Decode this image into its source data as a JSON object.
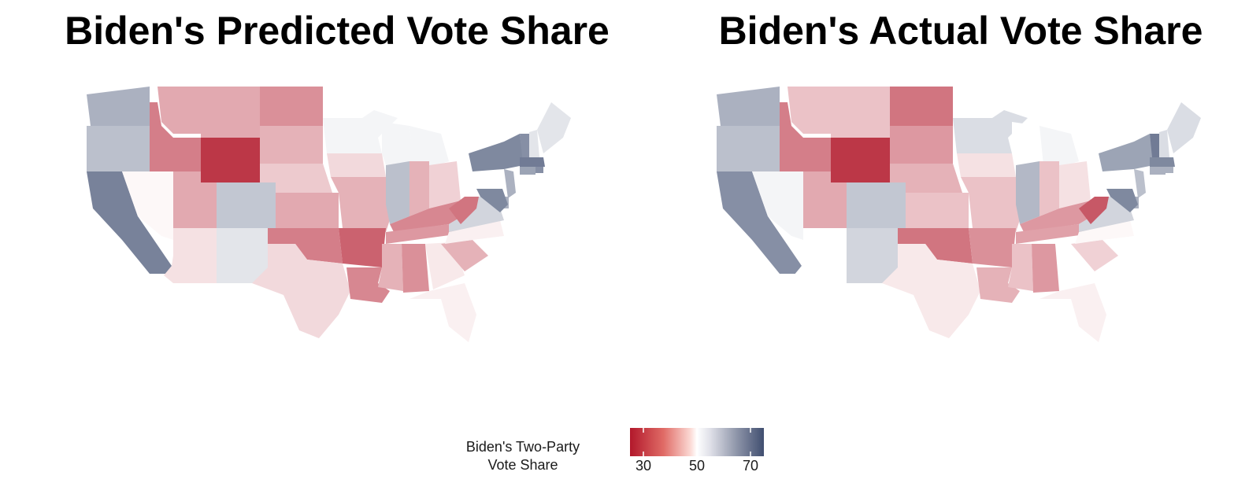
{
  "titles": {
    "left": "Biden's Predicted Vote Share",
    "right": "Biden's Actual Vote Share"
  },
  "legend": {
    "title": "Biden's Two-Party\nVote Share",
    "ticks": [
      {
        "value": 30,
        "label": "30"
      },
      {
        "value": 50,
        "label": "50"
      },
      {
        "value": 70,
        "label": "70"
      }
    ],
    "range": [
      25,
      75
    ],
    "colors": {
      "low": "#b2182b",
      "mid": "#ffffff",
      "high": "#404e70"
    }
  },
  "map_data": {
    "type": "choropleth",
    "variable": "Biden's two-party vote share (%)",
    "panels": [
      {
        "id": "predicted",
        "title_key": "left",
        "values": {
          "WA": 60,
          "OR": 58,
          "CA": 67,
          "NV": 49,
          "ID": 34,
          "MT": 39,
          "WY": 27,
          "UT": 39,
          "AZ": 46,
          "CO": 57,
          "NM": 53,
          "ND": 36,
          "SD": 40,
          "NE": 43,
          "KS": 39,
          "OK": 34,
          "TX": 45,
          "MN": 51,
          "IA": 45,
          "MO": 40,
          "AR": 31,
          "LA": 35,
          "WI": 51,
          "IL": 58,
          "MI": 51,
          "IN": 40,
          "OH": 44,
          "KY": 35,
          "TN": 37,
          "MS": 40,
          "AL": 36,
          "GA": 47,
          "FL": 48,
          "SC": 40,
          "NC": 48,
          "VA": 55,
          "WV": 33,
          "PA": 50,
          "NY": 66,
          "VT": 65,
          "NH": 53,
          "ME": 53,
          "MA": 68,
          "RI": 65,
          "CT": 62,
          "NJ": 60,
          "DE": 60,
          "MD": 66
        }
      },
      {
        "id": "actual",
        "title_key": "right",
        "values": {
          "WA": 60,
          "OR": 58,
          "CA": 65,
          "NV": 51,
          "ID": 34,
          "MT": 42,
          "WY": 27,
          "UT": 39,
          "AZ": 50,
          "CO": 57,
          "NM": 55,
          "ND": 33,
          "SD": 37,
          "NE": 40,
          "KS": 42,
          "OK": 33,
          "TX": 47,
          "MN": 54,
          "IA": 46,
          "MO": 42,
          "AR": 36,
          "LA": 40,
          "WI": 50,
          "IL": 59,
          "MI": 51,
          "IN": 42,
          "OH": 46,
          "KY": 37,
          "TN": 38,
          "MS": 42,
          "AL": 37,
          "GA": 50,
          "FL": 48,
          "SC": 44,
          "NC": 49,
          "VA": 55,
          "WV": 30,
          "PA": 50,
          "NY": 62,
          "VT": 68,
          "NH": 54,
          "ME": 54,
          "MA": 66,
          "RI": 60,
          "CT": 60,
          "NJ": 58,
          "DE": 60,
          "MD": 66
        }
      }
    ]
  }
}
